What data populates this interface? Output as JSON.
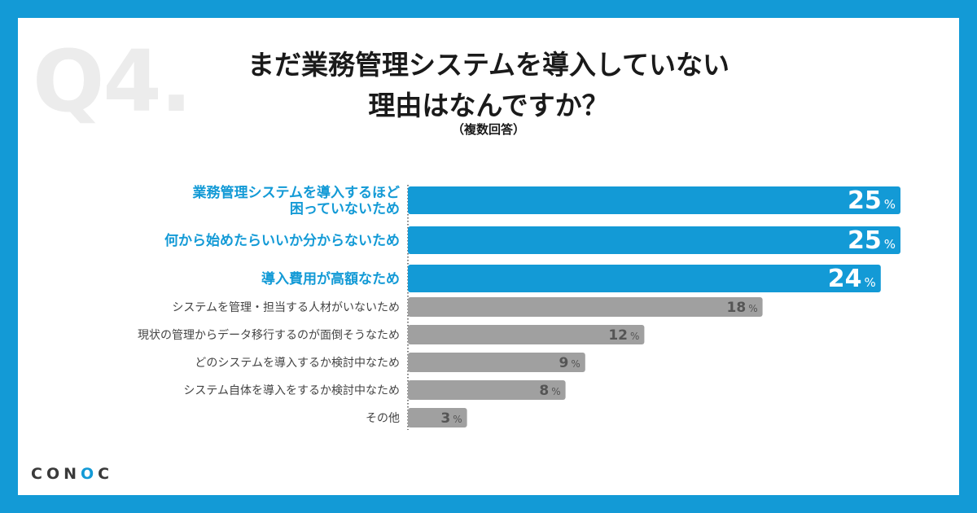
{
  "question_number": "Q4.",
  "title_lines": [
    "まだ業務管理システムを導入していない",
    "理由はなんですか？"
  ],
  "subtitle": "（複数回答）",
  "brand": {
    "prefix": "CON",
    "accent": "O",
    "suffix": "C"
  },
  "colors": {
    "frame": "#139ad6",
    "highlight": "#139ad6",
    "bar_other": "#a0a0a0",
    "label_other": "#444444",
    "value_other": "#555555"
  },
  "chart_data": {
    "type": "bar",
    "orientation": "horizontal",
    "title": "まだ業務管理システムを導入していない理由はなんですか？",
    "subtitle": "（複数回答）",
    "unit": "%",
    "xlim": [
      0,
      25
    ],
    "grid": false,
    "categories": [
      [
        "業務管理システムを導入するほど",
        "困っていないため"
      ],
      [
        "何から始めたらいいか分からないため"
      ],
      [
        "導入費用が高額なため"
      ],
      [
        "システムを管理・担当する人材がいないため"
      ],
      [
        "現状の管理からデータ移行するのが面倒そうなため"
      ],
      [
        "どのシステムを導入するか検討中なため"
      ],
      [
        "システム自体を導入をするか検討中なため"
      ],
      [
        "その他"
      ]
    ],
    "values": [
      25,
      25,
      24,
      18,
      12,
      9,
      8,
      3
    ],
    "highlighted": [
      true,
      true,
      true,
      false,
      false,
      false,
      false,
      false
    ]
  }
}
